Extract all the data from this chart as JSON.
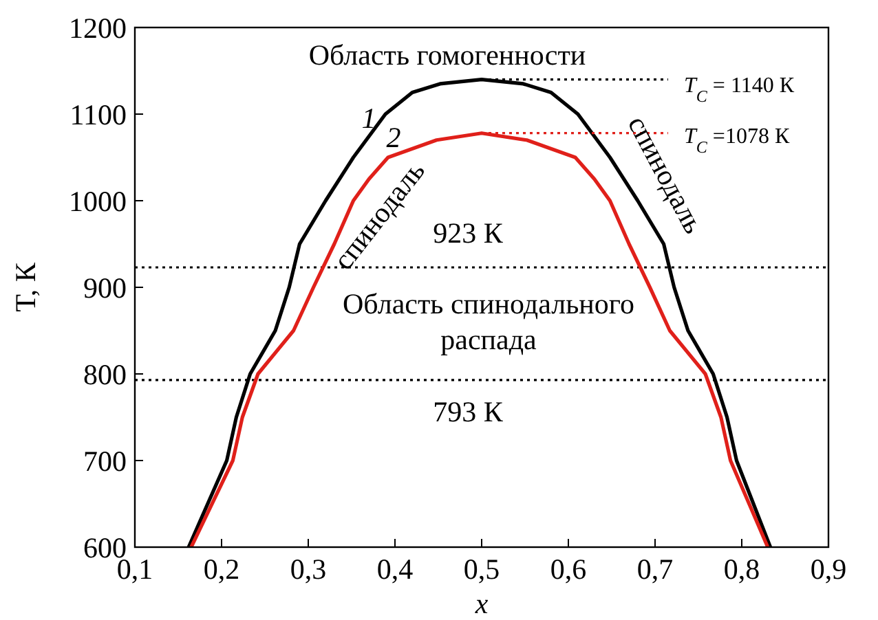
{
  "chart_data": {
    "type": "line",
    "xlabel": "x",
    "ylabel": "T, К",
    "marker": "none",
    "xlim": [
      0.1,
      0.9
    ],
    "ylim": [
      600,
      1200
    ],
    "xticks": [
      {
        "value": 0.1,
        "label": "0,1"
      },
      {
        "value": 0.2,
        "label": "0,2"
      },
      {
        "value": 0.3,
        "label": "0,3"
      },
      {
        "value": 0.4,
        "label": "0,4"
      },
      {
        "value": 0.5,
        "label": "0,5"
      },
      {
        "value": 0.6,
        "label": "0,6"
      },
      {
        "value": 0.7,
        "label": "0,7"
      },
      {
        "value": 0.8,
        "label": "0,8"
      },
      {
        "value": 0.9,
        "label": "0,9"
      }
    ],
    "yticks": [
      600,
      700,
      800,
      900,
      1000,
      1100,
      1200
    ],
    "series": [
      {
        "color": "#000000",
        "line_style": "solid",
        "x": [
          0.162,
          0.206,
          0.217,
          0.233,
          0.262,
          0.278,
          0.29,
          0.32,
          0.352,
          0.389,
          0.42,
          0.452,
          0.5,
          0.548,
          0.58,
          0.611,
          0.648,
          0.68,
          0.71,
          0.722,
          0.738,
          0.767,
          0.783,
          0.794,
          0.833
        ],
        "values": [
          600,
          700,
          750,
          800,
          850,
          900,
          950,
          1000,
          1050,
          1100,
          1125,
          1135,
          1140,
          1135,
          1125,
          1100,
          1050,
          1000,
          950,
          900,
          850,
          800,
          750,
          700,
          600
        ]
      },
      {
        "color": "#e0201a",
        "line_style": "solid",
        "x": [
          0.165,
          0.213,
          0.224,
          0.242,
          0.283,
          0.306,
          0.33,
          0.352,
          0.37,
          0.392,
          0.448,
          0.5,
          0.552,
          0.608,
          0.63,
          0.648,
          0.67,
          0.694,
          0.717,
          0.758,
          0.776,
          0.787,
          0.83
        ],
        "values": [
          600,
          700,
          750,
          800,
          850,
          900,
          950,
          1000,
          1025,
          1050,
          1070,
          1078,
          1070,
          1050,
          1025,
          1000,
          950,
          900,
          850,
          800,
          750,
          700,
          600
        ]
      },
      {
        "color": "#000000",
        "line_style": "dotted",
        "x": [
          0.5,
          0.715
        ],
        "values": [
          1140,
          1140
        ]
      },
      {
        "color": "#e0201a",
        "line_style": "dotted",
        "x": [
          0.5,
          0.715
        ],
        "values": [
          1078,
          1078
        ]
      }
    ],
    "ref_lines": [
      {
        "axis": "y",
        "value": 923,
        "label": "923 К",
        "color": "#000000",
        "line_style": "dotted"
      },
      {
        "axis": "y",
        "value": 793,
        "label": "793 К",
        "color": "#000000",
        "line_style": "dotted"
      }
    ],
    "annotations": [
      "Область гомогенности",
      "спинодаль",
      "спинодаль",
      "Область спинодального распада",
      "T$_{C}$ = 1140 К",
      "T$_{C}$ =1078 К",
      "1",
      "2"
    ]
  }
}
